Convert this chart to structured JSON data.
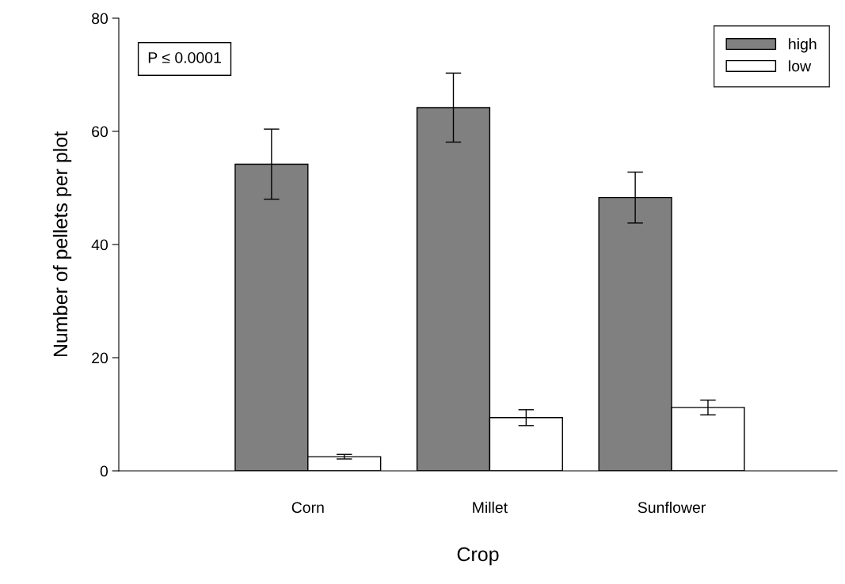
{
  "chart_data": {
    "type": "bar",
    "xlabel": "Crop",
    "ylabel": "Number of pellets per plot",
    "categories": [
      "Corn",
      "Millet",
      "Sunflower"
    ],
    "series": [
      {
        "name": "high",
        "color": "#808080",
        "values": [
          54.2,
          64.2,
          48.3
        ],
        "errors": [
          6.2,
          6.1,
          4.5
        ]
      },
      {
        "name": "low",
        "color": "#ffffff",
        "values": [
          2.5,
          9.4,
          11.2
        ],
        "errors": [
          0.4,
          1.4,
          1.3
        ]
      }
    ],
    "ylim": [
      0,
      80
    ],
    "yticks": [
      0,
      20,
      40,
      60,
      80
    ],
    "annotations": [
      "P ≤ 0.0001"
    ],
    "legend": "top right",
    "grid": false
  }
}
